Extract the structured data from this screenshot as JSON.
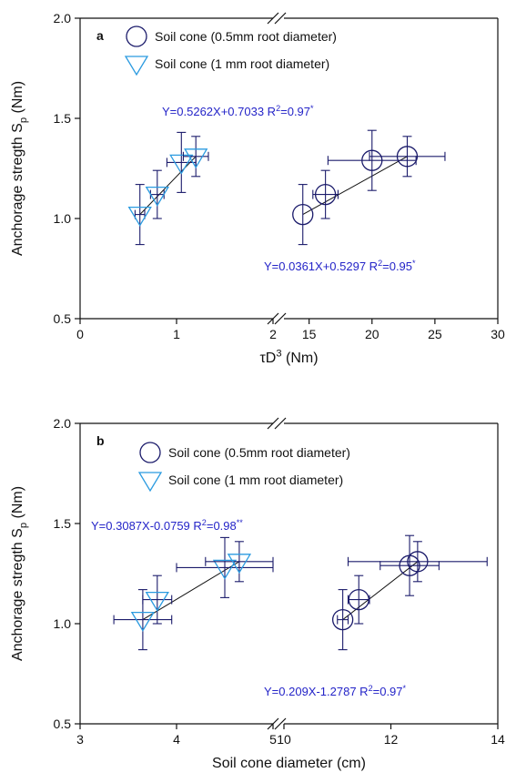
{
  "chart_data": [
    {
      "type": "scatter",
      "panel_label": "a",
      "ylabel": [
        {
          "text": "Anchorage stregth S"
        },
        {
          "text": "p",
          "script": "sub"
        },
        {
          "text": " (Nm)"
        }
      ],
      "xlabel": [
        {
          "text": "τD"
        },
        {
          "text": "3",
          "script": "sup"
        },
        {
          "text": " (Nm)"
        }
      ],
      "ylim": [
        0.5,
        2.0
      ],
      "yticks": [
        0.5,
        {
          "value": 1.0,
          "label": "1.0"
        },
        1.5,
        {
          "value": 2.0,
          "label": "2.0"
        }
      ],
      "x_segments": [
        {
          "xlim": [
            0,
            2
          ],
          "xticks": [
            0,
            1,
            2
          ]
        },
        {
          "xlim": [
            13,
            30
          ],
          "xticks": [
            15,
            20,
            25,
            30
          ]
        }
      ],
      "legend": "upper left",
      "series": [
        {
          "name": "Soil cone (0.5mm root diameter)",
          "color": "#1b1b6b",
          "marker": "circle",
          "segment": 1,
          "x": [
            14.5,
            16.3,
            20,
            22.8
          ],
          "values": [
            1.02,
            1.12,
            1.29,
            1.31
          ],
          "xerr": [
            0,
            1,
            3.5,
            3
          ],
          "yerr": [
            0.15,
            0.12,
            0.15,
            0.1
          ]
        },
        {
          "name": "Soil cone (1 mm root diameter)",
          "color": "#2b9be0",
          "marker": "triangle-down",
          "segment": 0,
          "x": [
            0.62,
            0.8,
            1.05,
            1.2
          ],
          "values": [
            1.02,
            1.12,
            1.28,
            1.31
          ],
          "xerr": [
            0.05,
            0.07,
            0.15,
            0.13
          ],
          "yerr": [
            0.15,
            0.12,
            0.15,
            0.1
          ]
        }
      ],
      "annotations": [
        {
          "color": "#2424c8",
          "parts": [
            {
              "text": "Y=0.5262X+0.7033  R"
            },
            {
              "text": "2",
              "script": "sup"
            },
            {
              "text": "=0.97"
            },
            {
              "text": "*",
              "script": "sup"
            }
          ]
        },
        {
          "color": "#2424c8",
          "parts": [
            {
              "text": "Y=0.0361X+0.5297  R"
            },
            {
              "text": "2",
              "script": "sup"
            },
            {
              "text": "=0.95"
            },
            {
              "text": "*",
              "script": "sup"
            }
          ]
        }
      ]
    },
    {
      "type": "scatter",
      "panel_label": "b",
      "ylabel": [
        {
          "text": "Anchorage stregth S"
        },
        {
          "text": "p",
          "script": "sub"
        },
        {
          "text": " (Nm)"
        }
      ],
      "xlabel": [
        {
          "text": "Soil cone diameter (cm)"
        }
      ],
      "ylim": [
        0.5,
        2.0
      ],
      "yticks": [
        0.5,
        {
          "value": 1.0,
          "label": "1.0"
        },
        1.5,
        {
          "value": 2.0,
          "label": "2.0"
        }
      ],
      "x_segments": [
        {
          "xlim": [
            3,
            5
          ],
          "xticks": [
            3,
            4,
            5
          ]
        },
        {
          "xlim": [
            10,
            14
          ],
          "xticks": [
            10,
            12,
            14
          ]
        }
      ],
      "legend": "upper left",
      "series": [
        {
          "name": "Soil cone (0.5mm root diameter)",
          "color": "#1b1b6b",
          "marker": "circle",
          "segment": 1,
          "x": [
            11.1,
            11.4,
            12.35,
            12.5
          ],
          "values": [
            1.02,
            1.12,
            1.29,
            1.31
          ],
          "xerr": [
            0.1,
            0.2,
            0.55,
            1.3
          ],
          "yerr": [
            0.15,
            0.12,
            0.15,
            0.1
          ]
        },
        {
          "name": "Soil cone (1 mm root diameter)",
          "color": "#2b9be0",
          "marker": "triangle-down",
          "segment": 0,
          "x": [
            3.65,
            3.8,
            4.5,
            4.65
          ],
          "values": [
            1.02,
            1.12,
            1.28,
            1.31
          ],
          "xerr": [
            0.3,
            0.15,
            0.5,
            0.35
          ],
          "yerr": [
            0.15,
            0.12,
            0.15,
            0.1
          ]
        }
      ],
      "annotations": [
        {
          "color": "#2424c8",
          "parts": [
            {
              "text": "Y=0.3087X-0.0759  R"
            },
            {
              "text": "2",
              "script": "sup"
            },
            {
              "text": "=0.98"
            },
            {
              "text": "**",
              "script": "sup"
            }
          ]
        },
        {
          "color": "#2424c8",
          "parts": [
            {
              "text": "Y=0.209X-1.2787  R"
            },
            {
              "text": "2",
              "script": "sup"
            },
            {
              "text": "=0.97"
            },
            {
              "text": "*",
              "script": "sup"
            }
          ]
        }
      ]
    }
  ]
}
